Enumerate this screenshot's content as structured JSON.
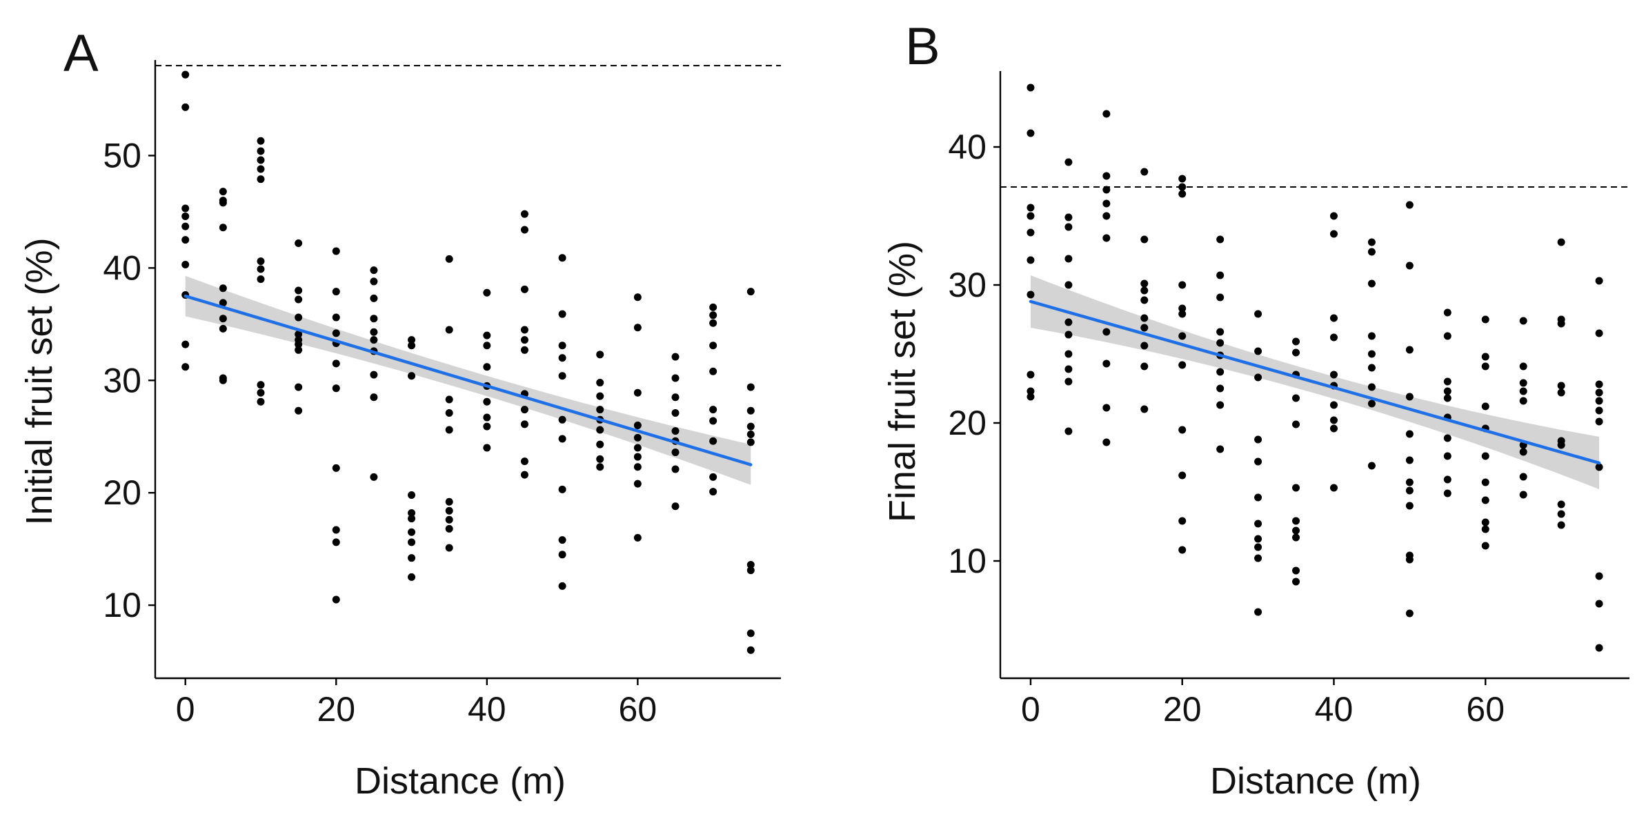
{
  "colors": {
    "points": "#000000",
    "fit_line": "#1f6fe6",
    "ci_band": "#cfcfcf",
    "axis": "#000000",
    "reference_line": "#000000"
  },
  "chart_data": [
    {
      "type": "scatter",
      "panel_label": "A",
      "title": "",
      "xlabel": "Distance (m)",
      "ylabel": "Initial fruit set (%)",
      "xlim": [
        -4,
        79
      ],
      "ylim": [
        3.5,
        58.5
      ],
      "xticks": [
        0,
        20,
        40,
        60
      ],
      "yticks": [
        10,
        20,
        30,
        40,
        50
      ],
      "grid": false,
      "legend": "none",
      "reference_line": {
        "y": 58
      },
      "fit": {
        "x0": 0,
        "y0": 37.5,
        "x1": 75,
        "y1": 22.5,
        "ci_half_width_ends": 1.8,
        "ci_half_width_center": 0.9
      },
      "groups": [
        {
          "x": 0,
          "y": [
            57.2,
            54.3,
            45.3,
            44.6,
            43.7,
            42.5,
            40.3,
            37.6,
            33.2,
            31.2
          ]
        },
        {
          "x": 5,
          "y": [
            46.8,
            46.0,
            45.8,
            43.6,
            38.2,
            36.9,
            35.5,
            34.6,
            30.2,
            30.0
          ]
        },
        {
          "x": 10,
          "y": [
            51.3,
            50.4,
            49.6,
            48.8,
            47.9,
            40.6,
            39.9,
            39.0,
            29.6,
            28.9,
            28.1
          ]
        },
        {
          "x": 15,
          "y": [
            42.2,
            38.0,
            37.2,
            35.6,
            34.1,
            33.6,
            33.2,
            32.7,
            29.4,
            27.3
          ]
        },
        {
          "x": 20,
          "y": [
            41.5,
            37.9,
            35.6,
            34.2,
            33.3,
            31.5,
            29.3,
            22.2,
            16.7,
            15.6,
            10.5
          ]
        },
        {
          "x": 25,
          "y": [
            39.8,
            38.8,
            37.3,
            35.5,
            34.3,
            33.6,
            32.6,
            30.5,
            28.5,
            21.4
          ]
        },
        {
          "x": 30,
          "y": [
            33.6,
            33.1,
            30.4,
            19.8,
            18.2,
            17.7,
            16.5,
            15.6,
            14.2,
            12.5
          ]
        },
        {
          "x": 35,
          "y": [
            40.8,
            34.5,
            28.3,
            27.1,
            25.6,
            19.2,
            18.4,
            17.6,
            16.8,
            15.1
          ]
        },
        {
          "x": 40,
          "y": [
            37.8,
            34.0,
            33.1,
            31.2,
            29.5,
            28.1,
            26.7,
            25.9,
            24.0
          ]
        },
        {
          "x": 45,
          "y": [
            44.8,
            43.4,
            38.1,
            34.5,
            33.6,
            32.7,
            28.8,
            27.4,
            26.1,
            22.8,
            21.6
          ]
        },
        {
          "x": 50,
          "y": [
            40.9,
            35.9,
            33.1,
            32.0,
            30.4,
            26.5,
            24.8,
            20.3,
            15.8,
            14.5,
            11.7
          ]
        },
        {
          "x": 55,
          "y": [
            32.3,
            29.8,
            28.6,
            27.4,
            26.5,
            25.6,
            24.3,
            23.0,
            22.3
          ]
        },
        {
          "x": 60,
          "y": [
            37.4,
            34.7,
            28.9,
            26.0,
            24.9,
            24.0,
            23.2,
            22.3,
            20.8,
            16.0
          ]
        },
        {
          "x": 65,
          "y": [
            32.1,
            30.2,
            28.5,
            27.1,
            25.5,
            24.6,
            23.6,
            22.1,
            18.8
          ]
        },
        {
          "x": 70,
          "y": [
            36.5,
            35.8,
            35.1,
            33.1,
            30.8,
            27.4,
            26.4,
            24.6,
            21.4,
            20.1
          ]
        },
        {
          "x": 75,
          "y": [
            37.9,
            29.4,
            27.3,
            25.9,
            25.2,
            24.5,
            13.6,
            13.1,
            7.5,
            6.0
          ]
        }
      ]
    },
    {
      "type": "scatter",
      "panel_label": "B",
      "title": "",
      "xlabel": "Distance (m)",
      "ylabel": "Final fruit set (%)",
      "xlim": [
        -4,
        79
      ],
      "ylim": [
        1.5,
        45.5
      ],
      "xticks": [
        0,
        20,
        40,
        60
      ],
      "yticks": [
        10,
        20,
        30,
        40
      ],
      "grid": false,
      "legend": "none",
      "reference_line": {
        "y": 37.1
      },
      "fit": {
        "x0": 0,
        "y0": 28.8,
        "x1": 75,
        "y1": 17.1,
        "ci_half_width_ends": 1.9,
        "ci_half_width_center": 0.8
      },
      "groups": [
        {
          "x": 0,
          "y": [
            44.3,
            41.0,
            35.6,
            35.0,
            33.8,
            31.8,
            29.3,
            23.5,
            22.3,
            21.9
          ]
        },
        {
          "x": 5,
          "y": [
            38.9,
            34.9,
            34.2,
            31.9,
            30.0,
            27.3,
            26.4,
            25.0,
            23.9,
            23.0,
            19.4
          ]
        },
        {
          "x": 10,
          "y": [
            42.4,
            37.9,
            36.9,
            35.9,
            35.0,
            33.4,
            26.6,
            24.3,
            21.1,
            18.6
          ]
        },
        {
          "x": 15,
          "y": [
            38.2,
            33.3,
            30.1,
            29.6,
            28.9,
            27.6,
            26.9,
            25.6,
            24.1,
            21.0
          ]
        },
        {
          "x": 20,
          "y": [
            37.7,
            37.1,
            36.6,
            30.0,
            28.3,
            27.9,
            26.3,
            24.2,
            19.5,
            16.2,
            12.9,
            10.8
          ]
        },
        {
          "x": 25,
          "y": [
            33.3,
            30.7,
            29.1,
            26.6,
            25.8,
            24.9,
            23.7,
            22.5,
            21.3,
            18.1
          ]
        },
        {
          "x": 30,
          "y": [
            27.9,
            25.2,
            23.3,
            18.8,
            17.2,
            14.6,
            12.7,
            11.6,
            11.0,
            10.2,
            6.3
          ]
        },
        {
          "x": 35,
          "y": [
            25.9,
            25.1,
            23.5,
            21.8,
            19.9,
            15.3,
            12.9,
            12.2,
            11.7,
            9.3,
            8.5
          ]
        },
        {
          "x": 40,
          "y": [
            35.0,
            33.7,
            27.6,
            26.2,
            23.5,
            22.7,
            21.3,
            20.2,
            19.6,
            15.3
          ]
        },
        {
          "x": 45,
          "y": [
            33.1,
            32.4,
            30.1,
            26.3,
            25.0,
            24.0,
            22.6,
            21.4,
            16.9
          ]
        },
        {
          "x": 50,
          "y": [
            35.8,
            31.4,
            25.3,
            21.9,
            19.2,
            17.3,
            15.7,
            15.1,
            14.0,
            10.4,
            10.1,
            6.2
          ]
        },
        {
          "x": 55,
          "y": [
            28.0,
            26.3,
            23.0,
            22.3,
            21.8,
            20.4,
            18.9,
            17.6,
            15.9,
            14.9
          ]
        },
        {
          "x": 60,
          "y": [
            27.5,
            24.8,
            24.1,
            21.2,
            19.6,
            17.6,
            15.7,
            14.4,
            12.8,
            12.3,
            11.1
          ]
        },
        {
          "x": 65,
          "y": [
            27.4,
            24.1,
            22.9,
            22.3,
            21.6,
            18.4,
            17.9,
            16.1,
            14.8
          ]
        },
        {
          "x": 70,
          "y": [
            33.1,
            27.5,
            27.2,
            22.7,
            22.2,
            18.7,
            18.4,
            14.1,
            13.4,
            12.6
          ]
        },
        {
          "x": 75,
          "y": [
            30.3,
            26.5,
            22.8,
            22.2,
            21.6,
            20.9,
            20.1,
            16.8,
            8.9,
            6.9,
            3.7
          ]
        }
      ]
    }
  ]
}
